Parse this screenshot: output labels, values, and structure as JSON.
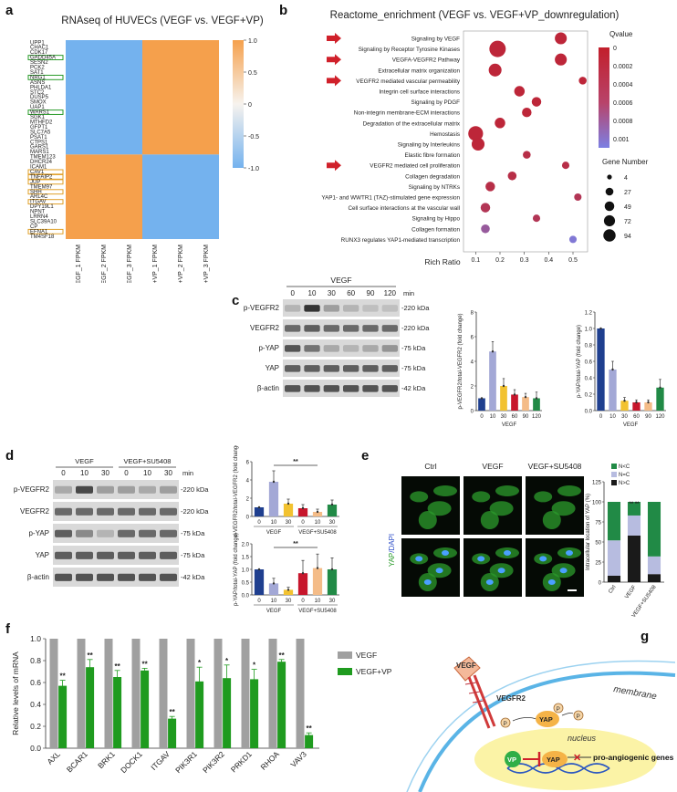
{
  "panels": [
    "a",
    "b",
    "c",
    "d",
    "e",
    "f",
    "g"
  ],
  "a": {
    "title": "RNAseq of HUVECs (VEGF vs. VEGF+VP)",
    "genes": [
      "UPP1",
      "CHAC1",
      "CDK17",
      "GADD45A",
      "SESN2",
      "PCK2",
      "SAT1",
      "NRG1",
      "ASNS",
      "PHLDA1",
      "STC2",
      "DUSP5",
      "SMOX",
      "UAP1",
      "WARS1",
      "SGK1",
      "MTHFD2",
      "GFPT1",
      "SLC7A5",
      "PSAT1",
      "CTPS1",
      "GARS1",
      "MARS1",
      "TMEM123",
      "DHCR24",
      "ICAM1",
      "CAV1",
      "TNFAIP2",
      "JUP",
      "TMEM97",
      "SHH",
      "ARL4C",
      "ITGAV",
      "DPY19L1",
      "NPNT",
      "LRRN4",
      "SLC39A10",
      "CP",
      "EFNA1",
      "TM4SF18"
    ],
    "boxed_green": [
      "GADD45A",
      "NRG1",
      "WARS1"
    ],
    "boxed_orange": [
      "CAV1",
      "TNFAIP2",
      "JUP",
      "SHH",
      "ITGAV",
      "EFNA1"
    ],
    "up_count": 23,
    "columns": [
      "VEGF_1 FPKM",
      "VEGF_2 FPKM",
      "VEGF_3 FPKM",
      "VEGF+VP_1 FPKM",
      "VEGF+VP_2 FPKM",
      "VEGF+VP_3 FPKM"
    ],
    "scale_ticks": [
      "1.0",
      "0.5",
      "0",
      "-0.5",
      "-1.0"
    ],
    "colors": {
      "high": "#f5a04c",
      "low": "#74b2ee"
    }
  },
  "b": {
    "title": "Reactome_enrichment (VEGF vs. VEGF+VP_downregulation)",
    "xlabel": "Rich Ratio",
    "xticks": [
      0.1,
      0.2,
      0.3,
      0.4,
      0.5
    ],
    "xlim": [
      0.05,
      0.56
    ],
    "terms": [
      {
        "name": "Signaling by VEGF",
        "x": 0.45,
        "q": 0.0001,
        "n": 40,
        "arrow": true
      },
      {
        "name": "Signaling by Receptor Tyrosine Kinases",
        "x": 0.19,
        "q": 0.0001,
        "n": 94,
        "arrow": false
      },
      {
        "name": "VEGFA-VEGFR2 Pathway",
        "x": 0.45,
        "q": 0.0001,
        "n": 40,
        "arrow": true
      },
      {
        "name": "Extracellular matrix organization",
        "x": 0.18,
        "q": 0.0001,
        "n": 49,
        "arrow": false
      },
      {
        "name": "VEGFR2 mediated vascular permeability",
        "x": 0.54,
        "q": 0.0001,
        "n": 10,
        "arrow": true
      },
      {
        "name": "Integrin cell surface interactions",
        "x": 0.28,
        "q": 0.0001,
        "n": 27,
        "arrow": false
      },
      {
        "name": "Signaling by PDGF",
        "x": 0.35,
        "q": 0.0001,
        "n": 20,
        "arrow": false
      },
      {
        "name": "Non-integrin membrane-ECM interactions",
        "x": 0.31,
        "q": 0.0001,
        "n": 20,
        "arrow": false
      },
      {
        "name": "Degradation of the extracellular matrix",
        "x": 0.2,
        "q": 0.0001,
        "n": 27,
        "arrow": false
      },
      {
        "name": "Hemostasis",
        "x": 0.1,
        "q": 0.0001,
        "n": 72,
        "arrow": false
      },
      {
        "name": "Signaling by Interleukins",
        "x": 0.11,
        "q": 0.0001,
        "n": 49,
        "arrow": false
      },
      {
        "name": "Elastic fibre formation",
        "x": 0.31,
        "q": 0.0002,
        "n": 10,
        "arrow": false
      },
      {
        "name": "VEGFR2 mediated cell proliferation",
        "x": 0.47,
        "q": 0.0002,
        "n": 8,
        "arrow": true
      },
      {
        "name": "Collagen degradation",
        "x": 0.25,
        "q": 0.0002,
        "n": 15,
        "arrow": false
      },
      {
        "name": "Signaling by NTRKs",
        "x": 0.16,
        "q": 0.0002,
        "n": 20,
        "arrow": false
      },
      {
        "name": "YAP1- and WWTR1 (TAZ)-stimulated gene expression",
        "x": 0.52,
        "q": 0.0003,
        "n": 8,
        "arrow": false
      },
      {
        "name": "Cell surface interactions at the vascular wall",
        "x": 0.14,
        "q": 0.0003,
        "n": 20,
        "arrow": false
      },
      {
        "name": "Signaling by Hippo",
        "x": 0.35,
        "q": 0.0003,
        "n": 8,
        "arrow": false
      },
      {
        "name": "Collagen formation",
        "x": 0.14,
        "q": 0.0008,
        "n": 15,
        "arrow": false
      },
      {
        "name": "RUNX3 regulates YAP1-mediated transcription",
        "x": 0.5,
        "q": 0.0012,
        "n": 8,
        "arrow": false
      }
    ],
    "qvalue": {
      "title": "Qvalue",
      "ticks": [
        "0",
        "0.0002",
        "0.0004",
        "0.0006",
        "0.0008",
        "0.001"
      ],
      "max": 0.0013
    },
    "gene_number": {
      "title": "Gene Number",
      "values": [
        4,
        27,
        49,
        72,
        94
      ]
    }
  },
  "c": {
    "treatment": "VEGF",
    "timepoints": [
      "0",
      "10",
      "30",
      "60",
      "90",
      "120"
    ],
    "unit": "min",
    "rows": [
      {
        "name": "p-VEGFR2",
        "kda": "-220 kDa",
        "i": [
          0.35,
          0.95,
          0.45,
          0.35,
          0.3,
          0.3
        ]
      },
      {
        "name": "VEGFR2",
        "kda": "-220 kDa",
        "i": [
          0.7,
          0.75,
          0.7,
          0.7,
          0.7,
          0.7
        ]
      },
      {
        "name": "p-YAP",
        "kda": "-75 kDa",
        "i": [
          0.8,
          0.65,
          0.4,
          0.35,
          0.4,
          0.5
        ]
      },
      {
        "name": "YAP",
        "kda": "-75 kDa",
        "i": [
          0.75,
          0.75,
          0.75,
          0.75,
          0.75,
          0.75
        ]
      },
      {
        "name": "β-actin",
        "kda": "-42 kDa",
        "i": [
          0.8,
          0.8,
          0.8,
          0.8,
          0.8,
          0.8
        ]
      }
    ],
    "bar1": {
      "ylabel": "p-VEGFR2/total-VEGFR2 (fold change)",
      "xlabel": "VEGF",
      "categories": [
        "0",
        "10",
        "30",
        "60",
        "90",
        "120"
      ],
      "values": [
        1,
        4.8,
        2.0,
        1.3,
        1.1,
        1.0
      ],
      "err": [
        0,
        0.8,
        0.6,
        0.4,
        0.3,
        0.5
      ],
      "ylim": [
        0,
        8
      ],
      "yticks": [
        0,
        2,
        4,
        6,
        8
      ]
    },
    "bar2": {
      "ylabel": "p-YAP/total-YAP (fold change)",
      "xlabel": "VEGF",
      "categories": [
        "0",
        "10",
        "30",
        "60",
        "90",
        "120"
      ],
      "values": [
        1.0,
        0.5,
        0.12,
        0.1,
        0.1,
        0.28
      ],
      "err": [
        0,
        0.1,
        0.04,
        0.03,
        0.03,
        0.1
      ],
      "ylim": [
        0,
        1.2
      ],
      "yticks": [
        0.0,
        0.2,
        0.4,
        0.6,
        0.8,
        1.0,
        1.2
      ]
    },
    "colors": [
      "#1f3f8f",
      "#a3a8d6",
      "#f2c230",
      "#c7162c",
      "#f4bc88",
      "#218a46"
    ]
  },
  "d": {
    "groups": [
      "VEGF",
      "VEGF+SU5408"
    ],
    "timepoints": [
      "0",
      "10",
      "30",
      "0",
      "10",
      "30"
    ],
    "unit": "min",
    "rows": [
      {
        "name": "p-VEGFR2",
        "kda": "-220 kDa",
        "i": [
          0.4,
          0.85,
          0.45,
          0.45,
          0.4,
          0.45
        ]
      },
      {
        "name": "VEGFR2",
        "kda": "-220 kDa",
        "i": [
          0.7,
          0.7,
          0.7,
          0.7,
          0.7,
          0.7
        ]
      },
      {
        "name": "p-YAP",
        "kda": "-75 kDa",
        "i": [
          0.75,
          0.55,
          0.35,
          0.7,
          0.7,
          0.7
        ]
      },
      {
        "name": "YAP",
        "kda": "-75 kDa",
        "i": [
          0.75,
          0.75,
          0.75,
          0.75,
          0.75,
          0.75
        ]
      },
      {
        "name": "β-actin",
        "kda": "-42 kDa",
        "i": [
          0.8,
          0.8,
          0.8,
          0.8,
          0.8,
          0.8
        ]
      }
    ],
    "bar1": {
      "ylabel": "p-VEGFR2/total-VEGFR2 (fold change)",
      "categories": [
        "0",
        "10",
        "30",
        "0",
        "10",
        "30"
      ],
      "values": [
        1,
        3.8,
        1.4,
        0.9,
        0.5,
        1.3
      ],
      "err": [
        0,
        1.2,
        0.5,
        0.4,
        0.3,
        0.5
      ],
      "ylim": [
        0,
        6
      ],
      "yticks": [
        0,
        2,
        4,
        6
      ],
      "sig": "**",
      "groups": [
        "VEGF",
        "VEGF+SU5408"
      ]
    },
    "bar2": {
      "ylabel": "p-YAP/total-YAP (fold change)",
      "categories": [
        "0",
        "10",
        "30",
        "0",
        "10",
        "30"
      ],
      "values": [
        1.0,
        0.45,
        0.2,
        0.85,
        1.05,
        1.0
      ],
      "err": [
        0,
        0.2,
        0.1,
        0.5,
        0.55,
        0.45
      ],
      "ylim": [
        0,
        2.0
      ],
      "yticks": [
        0.0,
        0.5,
        1.0,
        1.5,
        2.0
      ],
      "sig": "**",
      "groups": [
        "VEGF",
        "VEGF+SU5408"
      ]
    }
  },
  "e": {
    "columns": [
      "Ctrl",
      "VEGF",
      "VEGF+SU5408"
    ],
    "side_label_yap": "YAP",
    "side_label_dapi": "/DAPI",
    "chart": {
      "ylabel": "Intracellular location of YAP (%)",
      "categories": [
        "Ctrl",
        "VEGF",
        "VEGF+SU5408"
      ],
      "legend": [
        "N<C",
        "N=C",
        "N>C"
      ],
      "series": [
        {
          "name": "N>C",
          "values": [
            8,
            58,
            10
          ]
        },
        {
          "name": "N=C",
          "values": [
            44,
            25,
            22
          ]
        },
        {
          "name": "N<C",
          "values": [
            48,
            17,
            68
          ]
        }
      ],
      "yticks": [
        0,
        25,
        50,
        75,
        100,
        125
      ],
      "ylim": [
        0,
        125
      ],
      "sig": "** **",
      "colors": [
        "#1a1a1a",
        "#b7bce0",
        "#218a46"
      ]
    }
  },
  "f": {
    "ylabel": "Relative levels of mRNA",
    "categories": [
      "AXL",
      "BCAR1",
      "BRK1",
      "DOCK1",
      "ITGAV",
      "PIK3R1",
      "PIK3R2",
      "PRKD1",
      "RHOA",
      "VAV3"
    ],
    "series": [
      {
        "name": "VEGF",
        "values": [
          1,
          1,
          1,
          1,
          1,
          1,
          1,
          1,
          1,
          1
        ]
      },
      {
        "name": "VEGF+VP",
        "values": [
          0.57,
          0.74,
          0.65,
          0.71,
          0.27,
          0.61,
          0.64,
          0.63,
          0.79,
          0.12
        ]
      }
    ],
    "err": [
      0.05,
      0.07,
      0.06,
      0.02,
      0.02,
      0.13,
      0.12,
      0.09,
      0.02,
      0.02
    ],
    "sig": [
      "**",
      "**",
      "**",
      "**",
      "**",
      "*",
      "*",
      "*",
      "**",
      "**"
    ],
    "yticks": [
      "0.0",
      "0.2",
      "0.4",
      "0.6",
      "0.8",
      "1.0"
    ],
    "ylim": [
      0,
      1.0
    ],
    "colors": {
      "VEGF": "#a0a0a0",
      "VEGF+VP": "#1f9b1f"
    }
  },
  "g": {
    "labels": {
      "vegf": "VEGF",
      "vegfr2": "VEGFR2",
      "membrane": "membrane",
      "nucleus": "nucleus",
      "yap": "YAP",
      "vp": "VP",
      "p": "P",
      "genes": "pro-angiogenic genes"
    }
  }
}
